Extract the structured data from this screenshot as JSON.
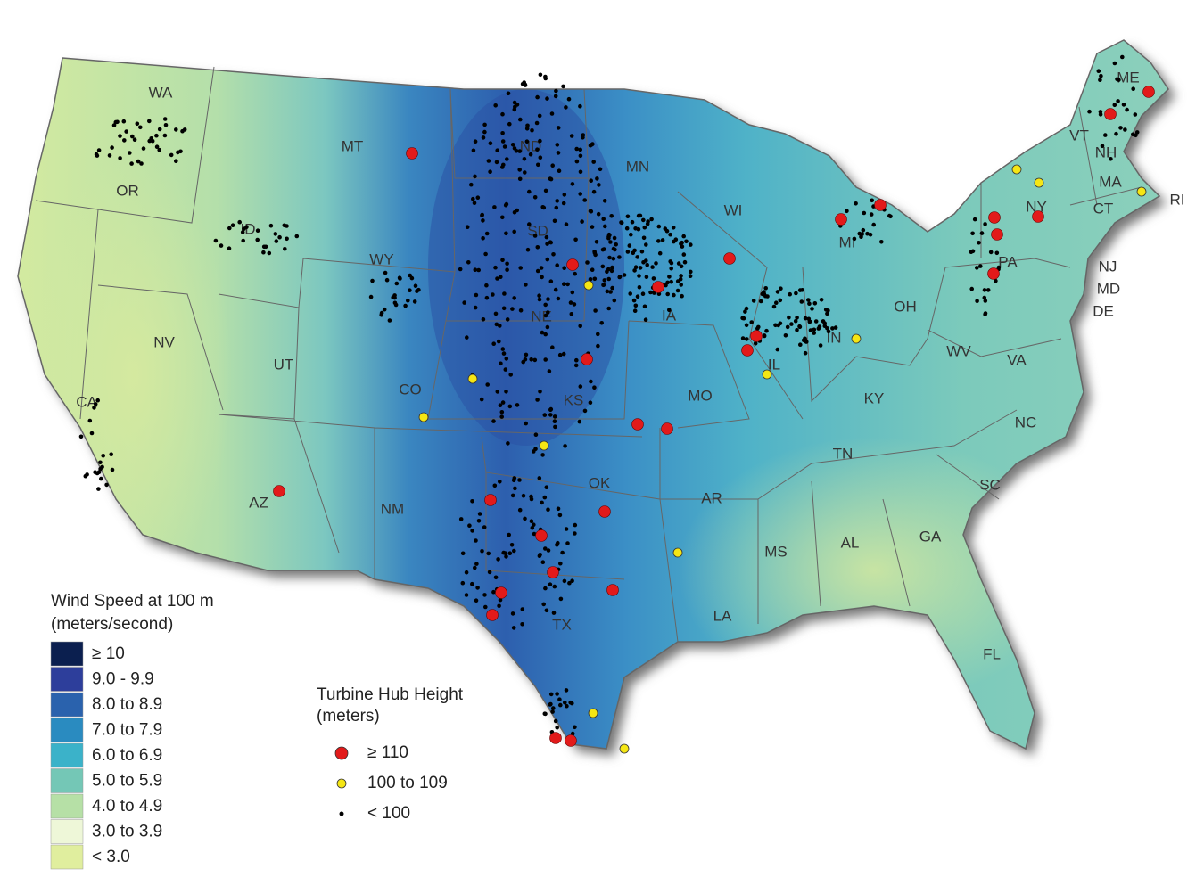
{
  "wind_legend": {
    "title": "Wind Speed at 100 m",
    "subtitle": "(meters/second)",
    "items": [
      {
        "label": "≥ 10",
        "color": "#0b1f4f"
      },
      {
        "label": "9.0 - 9.9",
        "color": "#2d3e9b"
      },
      {
        "label": "8.0 to 8.9",
        "color": "#2a62ad"
      },
      {
        "label": "7.0 to 7.9",
        "color": "#2a8bc0"
      },
      {
        "label": "6.0 to 6.9",
        "color": "#3bb2c9"
      },
      {
        "label": "5.0 to 5.9",
        "color": "#74c7b6"
      },
      {
        "label": "4.0 to 4.9",
        "color": "#b6e0a6"
      },
      {
        "label": "3.0 to 3.9",
        "color": "#eef7d8"
      },
      {
        "label": "< 3.0",
        "color": "#e0ee9e"
      }
    ]
  },
  "hub_legend": {
    "title": "Turbine Hub Height",
    "subtitle": "(meters)",
    "items": [
      {
        "label": "≥ 110",
        "color": "#e21a1a"
      },
      {
        "label": "100 to 109",
        "color": "#f5e614"
      },
      {
        "label": "< 100",
        "color": "#000000"
      }
    ]
  },
  "states": [
    "WA",
    "OR",
    "CA",
    "NV",
    "ID",
    "MT",
    "WY",
    "UT",
    "CO",
    "AZ",
    "NM",
    "ND",
    "SD",
    "NE",
    "KS",
    "OK",
    "TX",
    "MN",
    "IA",
    "MO",
    "AR",
    "LA",
    "WI",
    "MI",
    "IL",
    "IN",
    "OH",
    "KY",
    "TN",
    "MS",
    "AL",
    "GA",
    "FL",
    "SC",
    "NC",
    "VA",
    "WV",
    "PA",
    "NY",
    "VT",
    "NH",
    "ME",
    "MA",
    "CT",
    "RI",
    "NJ",
    "MD",
    "DE"
  ]
}
